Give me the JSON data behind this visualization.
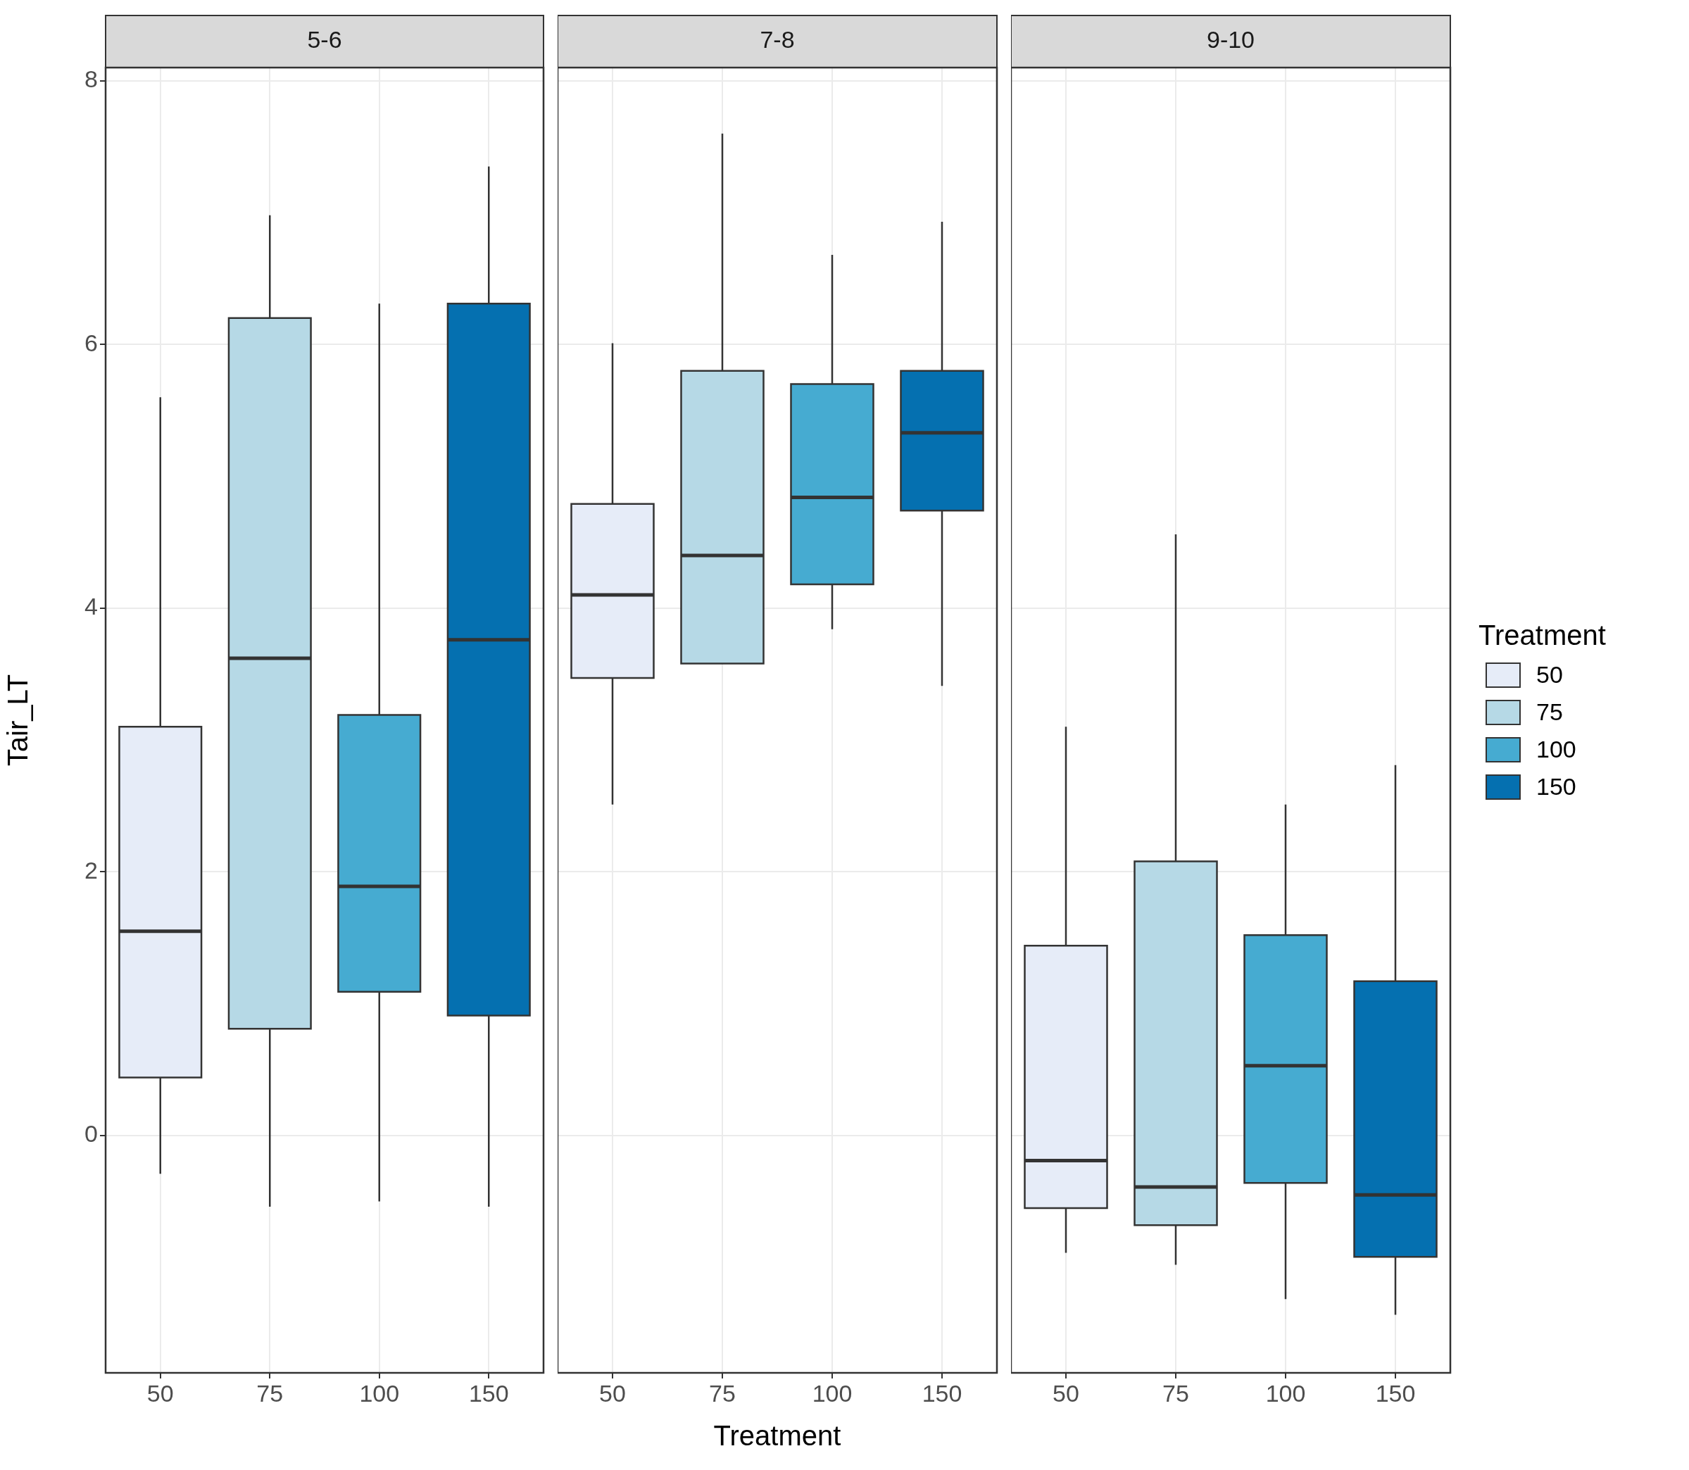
{
  "chart_data": [
    {
      "type": "box",
      "title": "5-6",
      "ylabel": "Tair_LT",
      "categories": [
        "50",
        "75",
        "100",
        "150"
      ],
      "ylim": [
        -1.8,
        8.1
      ],
      "yticks": [
        0,
        2,
        4,
        6,
        8
      ],
      "grid": true,
      "legend": "right",
      "legend_title": "Treatment",
      "series": [
        {
          "name": "50",
          "color": "#e6ecf8",
          "boxes": [
            {
              "low": -0.29,
              "q1": 0.44,
              "median": 1.55,
              "q3": 3.1,
              "high": 5.6
            },
            null,
            null,
            null
          ]
        },
        {
          "name": "75",
          "color": "#b6d9e6",
          "boxes": [
            null,
            {
              "low": -0.54,
              "q1": 0.81,
              "median": 3.62,
              "q3": 6.2,
              "high": 6.98
            },
            null,
            null
          ]
        },
        {
          "name": "100",
          "color": "#46abd1",
          "boxes": [
            null,
            null,
            {
              "low": -0.5,
              "q1": 1.09,
              "median": 1.89,
              "q3": 3.19,
              "high": 6.31
            },
            null
          ]
        },
        {
          "name": "150",
          "color": "#0570b0",
          "boxes": [
            null,
            null,
            null,
            {
              "low": -0.54,
              "q1": 0.91,
              "median": 3.76,
              "q3": 6.31,
              "high": 7.35
            }
          ]
        }
      ]
    },
    {
      "type": "box",
      "title": "7-8",
      "xlabel": "Treatment",
      "categories": [
        "50",
        "75",
        "100",
        "150"
      ],
      "ylim": [
        -1.8,
        8.1
      ],
      "yticks": [
        0,
        2,
        4,
        6,
        8
      ],
      "grid": true,
      "tick_labels": "x",
      "series": [
        {
          "color": "#e6ecf8",
          "boxes": [
            {
              "low": 2.51,
              "q1": 3.47,
              "median": 4.1,
              "q3": 4.79,
              "high": 6.01
            },
            null,
            null,
            null
          ]
        },
        {
          "color": "#b6d9e6",
          "boxes": [
            null,
            {
              "low": 3.58,
              "q1": 3.58,
              "median": 4.4,
              "q3": 5.8,
              "high": 7.6
            },
            null,
            null
          ]
        },
        {
          "color": "#46abd1",
          "boxes": [
            null,
            null,
            {
              "low": 3.84,
              "q1": 4.18,
              "median": 4.84,
              "q3": 5.7,
              "high": 6.68
            },
            null
          ]
        },
        {
          "color": "#0570b0",
          "boxes": [
            null,
            null,
            null,
            {
              "low": 3.41,
              "q1": 4.74,
              "median": 5.33,
              "q3": 5.8,
              "high": 6.93
            }
          ]
        }
      ]
    },
    {
      "type": "box",
      "title": "9-10",
      "categories": [
        "50",
        "75",
        "100",
        "150"
      ],
      "ylim": [
        -1.8,
        8.1
      ],
      "yticks": [
        0,
        2,
        4,
        6,
        8
      ],
      "grid": true,
      "tick_labels": "x",
      "series": [
        {
          "color": "#e6ecf8",
          "boxes": [
            {
              "low": -0.89,
              "q1": -0.55,
              "median": -0.19,
              "q3": 1.44,
              "high": 3.1
            },
            null,
            null,
            null
          ]
        },
        {
          "color": "#b6d9e6",
          "boxes": [
            null,
            {
              "low": -0.98,
              "q1": -0.68,
              "median": -0.39,
              "q3": 2.08,
              "high": 4.56
            },
            null,
            null
          ]
        },
        {
          "color": "#46abd1",
          "boxes": [
            null,
            null,
            {
              "low": -1.24,
              "q1": -0.36,
              "median": 0.53,
              "q3": 1.52,
              "high": 2.51
            },
            null
          ]
        },
        {
          "color": "#0570b0",
          "boxes": [
            null,
            null,
            null,
            {
              "low": -1.36,
              "q1": -0.92,
              "median": -0.45,
              "q3": 1.17,
              "high": 2.81
            }
          ]
        }
      ]
    }
  ]
}
